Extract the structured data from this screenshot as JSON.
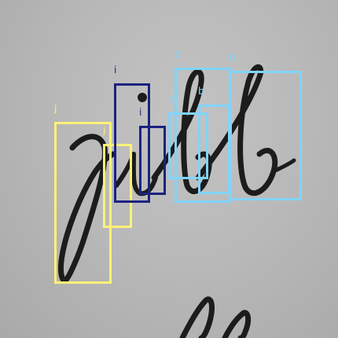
{
  "handwritten_word": "jibb",
  "annotations": [
    {
      "label": "j",
      "color": "#fff176"
    },
    {
      "label": "j",
      "color": "#fff176"
    },
    {
      "label": "i",
      "color": "#1a237e"
    },
    {
      "label": "i",
      "color": "#1a237e"
    },
    {
      "label": "b",
      "color": "#81d4fa"
    },
    {
      "label": "b",
      "color": "#81d4fa"
    },
    {
      "label": "b",
      "color": "#81d4fa"
    },
    {
      "label": "b",
      "color": "#81d4fa"
    }
  ]
}
